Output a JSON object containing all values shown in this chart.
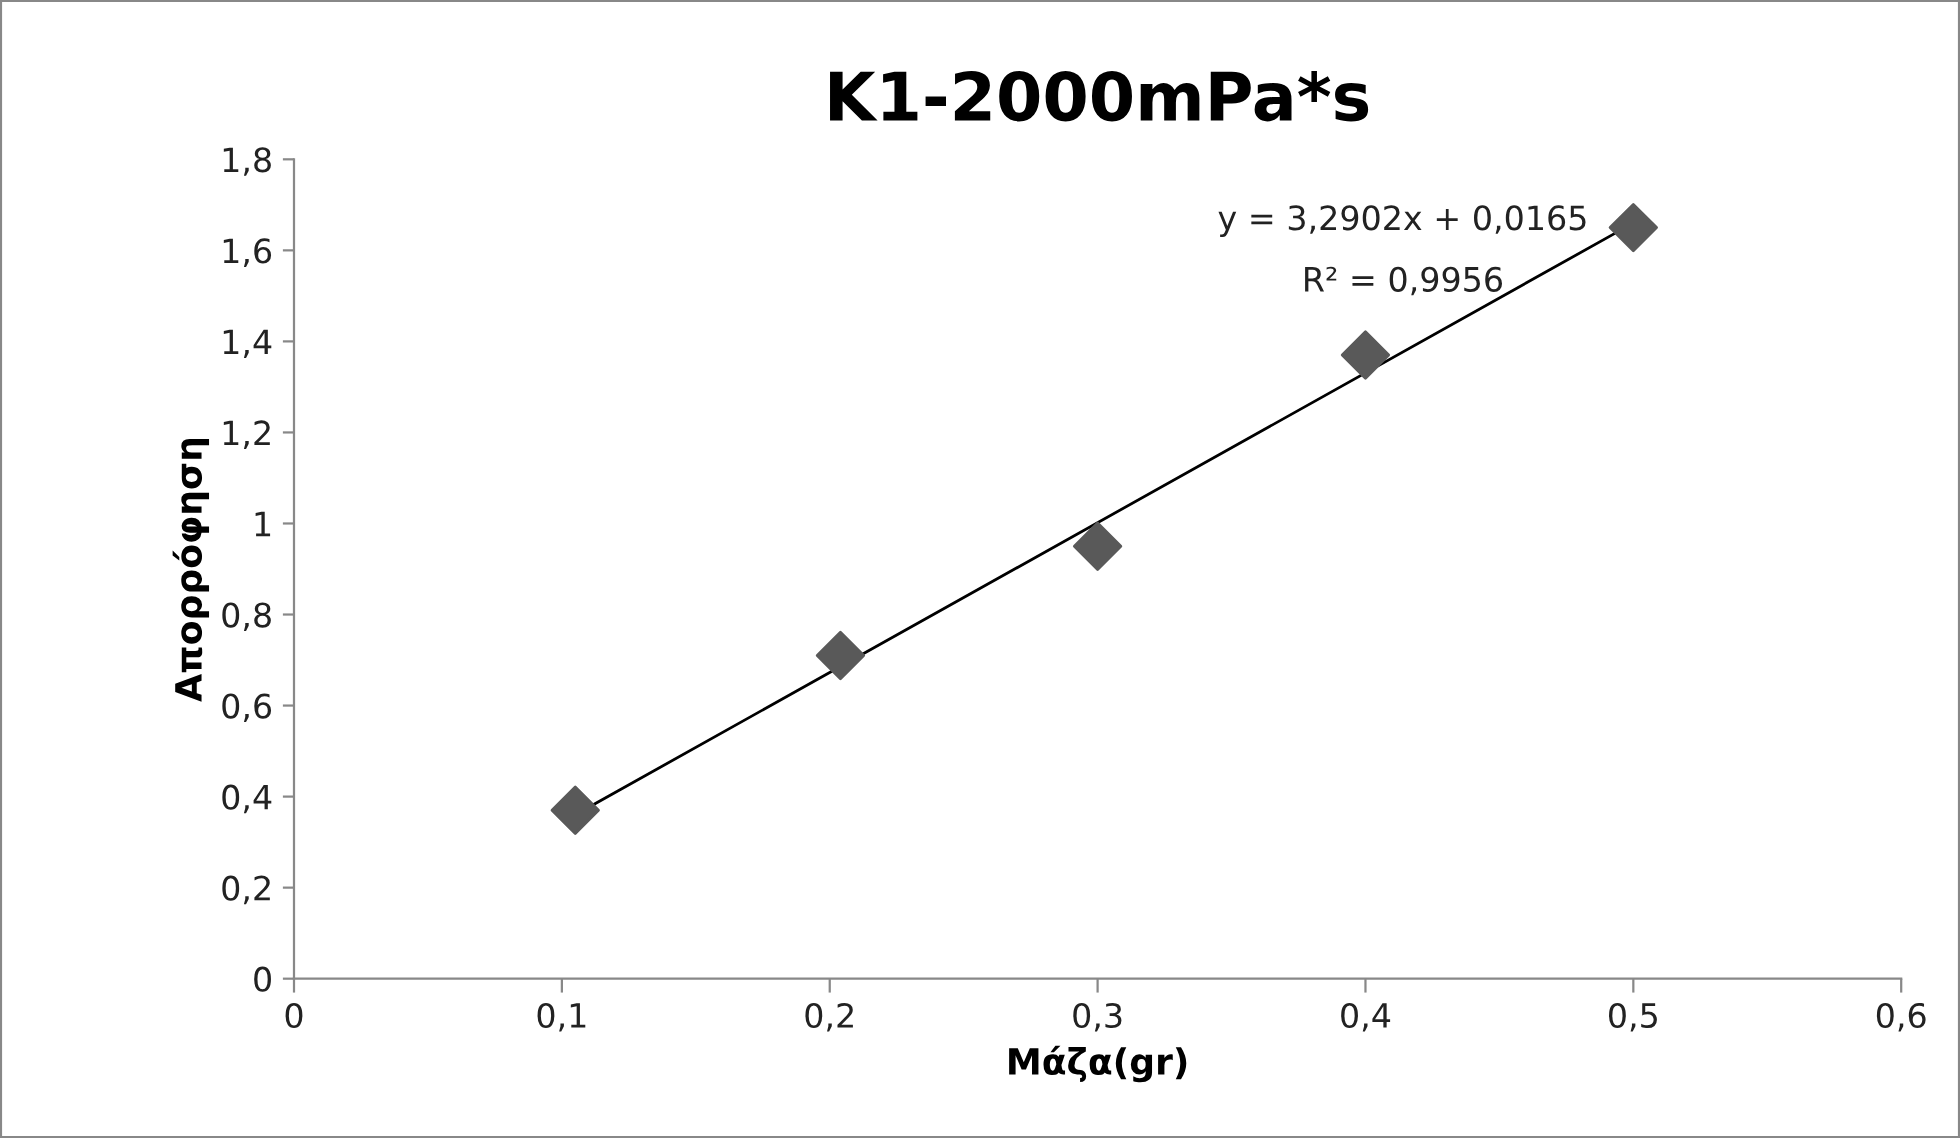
{
  "chart_data": {
    "type": "scatter",
    "title": "K1-2000mPa*s",
    "xlabel": "Μάζα(gr)",
    "ylabel": "Απορρόφηση",
    "series": [
      {
        "color": "#595959",
        "marker": "diamond",
        "x": [
          0.105,
          0.204,
          0.3,
          0.4,
          0.5
        ],
        "values": [
          0.37,
          0.71,
          0.95,
          1.37,
          1.65
        ]
      },
      {
        "type": "line",
        "color": "#000000",
        "marker": "none",
        "line_style": "solid",
        "x": [
          0.105,
          0.5
        ],
        "values": [
          0.36,
          1.66
        ]
      }
    ],
    "xlim": [
      0,
      0.6
    ],
    "ylim": [
      0,
      1.8
    ],
    "xticks": [
      0,
      {
        "value": 0.1,
        "label": "0,1"
      },
      {
        "value": 0.2,
        "label": "0,2"
      },
      {
        "value": 0.3,
        "label": "0,3"
      },
      {
        "value": 0.4,
        "label": "0,4"
      },
      {
        "value": 0.5,
        "label": "0,5"
      },
      {
        "value": 0.6,
        "label": "0,6"
      }
    ],
    "yticks": [
      0,
      {
        "value": 0.2,
        "label": "0,2"
      },
      {
        "value": 0.4,
        "label": "0,4"
      },
      {
        "value": 0.6,
        "label": "0,6"
      },
      {
        "value": 0.8,
        "label": "0,8"
      },
      1,
      {
        "value": 1.2,
        "label": "1,2"
      },
      {
        "value": 1.4,
        "label": "1,4"
      },
      {
        "value": 1.6,
        "label": "1,6"
      },
      {
        "value": 1.8,
        "label": "1,8"
      }
    ],
    "grid": false,
    "legend": false,
    "annotations": [
      "y = 3,2902x + 0,0165",
      "R² = 0,9956"
    ]
  }
}
